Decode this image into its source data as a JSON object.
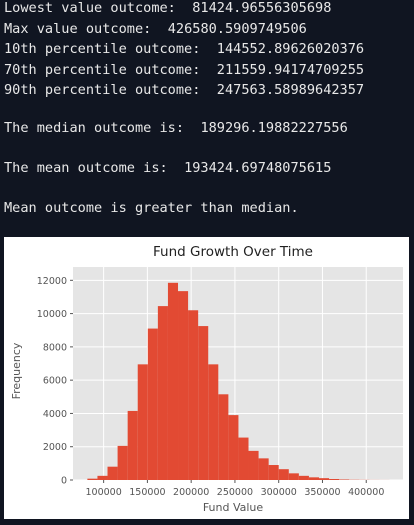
{
  "console": {
    "lowest_label": "Lowest value outcome:",
    "lowest_value": "81424.96556305698",
    "max_label": "Max value outcome:",
    "max_value": "426580.5909749506",
    "p10_label": "10th percentile outcome:",
    "p10_value": "144552.89626020376",
    "p70_label": "70th percentile outcome:",
    "p70_value": "211559.94174709255",
    "p90_label": "90th percentile outcome:",
    "p90_value": "247563.58989642357",
    "median_label": "The median outcome is:",
    "median_value": "189296.19882227556",
    "mean_label": "The mean outcome is:",
    "mean_value": "193424.69748075615",
    "conclusion": "Mean outcome is greater than median."
  },
  "colors": {
    "background": "#101521",
    "console_text": "#e8e8e8",
    "plot_bg": "#e5e5e5",
    "grid": "#ffffff",
    "bar": "#e24a33"
  },
  "chart_data": {
    "type": "bar",
    "title": "Fund Growth Over Time",
    "xlabel": "Fund Value",
    "ylabel": "Frequency",
    "xlim": [
      65000,
      442000
    ],
    "ylim": [
      0,
      12800
    ],
    "xticks": [
      100000,
      150000,
      200000,
      250000,
      300000,
      350000,
      400000
    ],
    "xtick_labels": [
      "100000",
      "150000",
      "200000",
      "250000",
      "300000",
      "350000",
      "400000"
    ],
    "yticks": [
      0,
      2000,
      4000,
      6000,
      8000,
      10000,
      12000
    ],
    "ytick_labels": [
      "0",
      "2000",
      "4000",
      "6000",
      "8000",
      "10000",
      "12000"
    ],
    "grid": true,
    "bin_edges": [
      81424.97,
      92930.09,
      104435.21,
      115940.33,
      127445.45,
      138950.57,
      150455.69,
      161960.81,
      173465.93,
      184971.05,
      196476.17,
      207981.29,
      219486.41,
      230991.53,
      242496.65,
      254001.77,
      265506.89,
      277012.01,
      288517.13,
      300022.25,
      311527.37,
      323032.49,
      334537.61,
      346042.73,
      357547.85,
      369052.97,
      380558.09,
      392063.21,
      403568.33,
      415073.45,
      426578.57
    ],
    "values": [
      80,
      250,
      800,
      2050,
      4150,
      6950,
      9100,
      10450,
      11850,
      11350,
      10200,
      9250,
      6950,
      5150,
      3900,
      2550,
      1750,
      1300,
      900,
      650,
      400,
      250,
      160,
      110,
      60,
      30,
      15,
      10,
      5,
      3
    ]
  }
}
